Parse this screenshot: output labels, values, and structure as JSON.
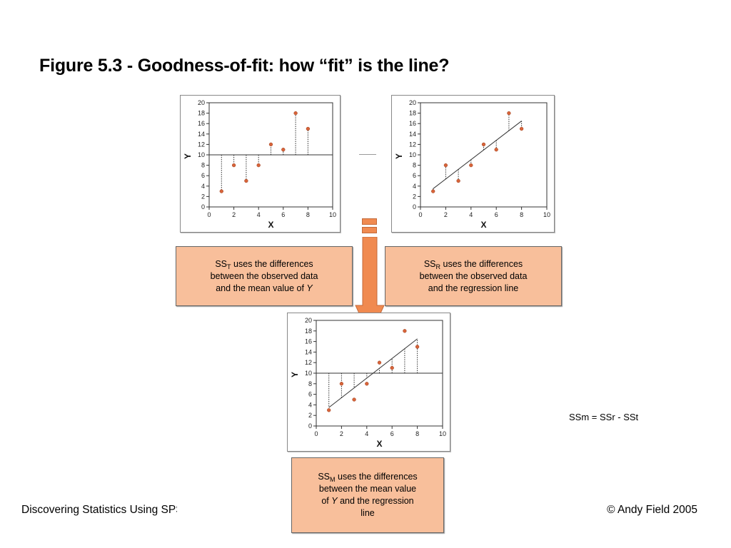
{
  "title": "Figure 5.3 - Goodness-of-fit: how “fit” is the line?",
  "captions": {
    "sst": {
      "pre": "SS",
      "sub": "T",
      "line1_rest": " uses the differences",
      "line2": "between the observed data",
      "line3_pre": "and the mean value of ",
      "line3_var": "Y"
    },
    "ssr": {
      "pre": "SS",
      "sub": "R",
      "line1_rest": " uses the differences",
      "line2": "between the observed data",
      "line3": "and the regression line"
    },
    "ssm": {
      "pre": "SS",
      "sub": "M",
      "line1_rest": " uses the differences",
      "line2": "between the mean value",
      "line3_pre": "of ",
      "line3_var": "Y",
      "line3_rest": " and the regression",
      "line4": "line"
    }
  },
  "formula": "SSm = SSr - SSt",
  "footer": {
    "left": "Discovering Statistics Using SPSS",
    "right": "© Andy Field 2005"
  },
  "colors": {
    "point": "#d8643a",
    "caption_bg": "#f8bf9b",
    "arrow": "#f08a50"
  },
  "chart_data": [
    {
      "type": "scatter",
      "title": "",
      "xlabel": "X",
      "ylabel": "Y",
      "xlim": [
        0,
        10
      ],
      "ylim": [
        0,
        20
      ],
      "xticks": [
        0,
        2,
        4,
        6,
        8,
        10
      ],
      "yticks": [
        0,
        2,
        4,
        6,
        8,
        10,
        12,
        14,
        16,
        18,
        20
      ],
      "points": [
        [
          1,
          3
        ],
        [
          2,
          8
        ],
        [
          3,
          5
        ],
        [
          4,
          8
        ],
        [
          5,
          12
        ],
        [
          6,
          11
        ],
        [
          7,
          18
        ],
        [
          8,
          15
        ]
      ],
      "mean_line": 10,
      "regression": null,
      "residuals": "to_mean"
    },
    {
      "type": "scatter",
      "title": "",
      "xlabel": "X",
      "ylabel": "Y",
      "xlim": [
        0,
        10
      ],
      "ylim": [
        0,
        20
      ],
      "xticks": [
        0,
        2,
        4,
        6,
        8,
        10
      ],
      "yticks": [
        0,
        2,
        4,
        6,
        8,
        10,
        12,
        14,
        16,
        18,
        20
      ],
      "points": [
        [
          1,
          3
        ],
        [
          2,
          8
        ],
        [
          3,
          5
        ],
        [
          4,
          8
        ],
        [
          5,
          12
        ],
        [
          6,
          11
        ],
        [
          7,
          18
        ],
        [
          8,
          15
        ]
      ],
      "mean_line": null,
      "regression": {
        "x0": 1,
        "y0": 3.5,
        "x1": 8,
        "y1": 16.5
      },
      "residuals": "to_regression"
    },
    {
      "type": "scatter",
      "title": "",
      "xlabel": "X",
      "ylabel": "Y",
      "xlim": [
        0,
        10
      ],
      "ylim": [
        0,
        20
      ],
      "xticks": [
        0,
        2,
        4,
        6,
        8,
        10
      ],
      "yticks": [
        0,
        2,
        4,
        6,
        8,
        10,
        12,
        14,
        16,
        18,
        20
      ],
      "points": [
        [
          1,
          3
        ],
        [
          2,
          8
        ],
        [
          3,
          5
        ],
        [
          4,
          8
        ],
        [
          5,
          12
        ],
        [
          6,
          11
        ],
        [
          7,
          18
        ],
        [
          8,
          15
        ]
      ],
      "mean_line": 10,
      "regression": {
        "x0": 1,
        "y0": 3.5,
        "x1": 8,
        "y1": 16.5
      },
      "residuals": "mean_to_regression"
    }
  ]
}
